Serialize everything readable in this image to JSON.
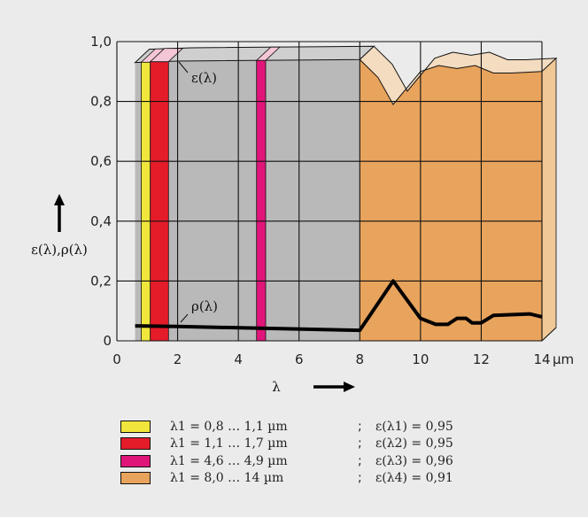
{
  "chart_data": {
    "type": "area",
    "xlabel": "λ",
    "x_unit": "µm",
    "ylabel": "ε(λ),ρ(λ)",
    "xlim": [
      0,
      14
    ],
    "ylim": [
      0,
      1.0
    ],
    "grid": true,
    "x_ticks": [
      "0",
      "2",
      "4",
      "6",
      "8",
      "10",
      "12",
      "14"
    ],
    "y_ticks": [
      "0",
      "0,2",
      "0,4",
      "0,6",
      "0,8",
      "1,0"
    ],
    "series": [
      {
        "name": "ε(λ)",
        "x": [
          0.6,
          2.0,
          8.0,
          8.6,
          9.1,
          10.0,
          10.6,
          11.2,
          11.8,
          12.4,
          13.0,
          14.0
        ],
        "y": [
          0.93,
          0.935,
          0.94,
          0.88,
          0.79,
          0.9,
          0.92,
          0.91,
          0.92,
          0.895,
          0.895,
          0.9
        ]
      },
      {
        "name": "ρ(λ)",
        "x": [
          0.6,
          2.0,
          8.0,
          9.1,
          10.0,
          10.5,
          10.9,
          11.2,
          11.5,
          11.7,
          12.0,
          12.4,
          13.6,
          14.0
        ],
        "y": [
          0.05,
          0.048,
          0.035,
          0.2,
          0.075,
          0.055,
          0.055,
          0.075,
          0.075,
          0.06,
          0.06,
          0.085,
          0.09,
          0.08
        ]
      }
    ],
    "bands": [
      {
        "range": "λ1 = 0,8 … 1,1 µm",
        "emissivity": "ε(λ1) = 0,95",
        "color": "#f0e63c",
        "x_from": 0.8,
        "x_to": 1.1,
        "height": 0.95
      },
      {
        "range": "λ1 = 1,1 … 1,7 µm",
        "emissivity": "ε(λ2) = 0,95",
        "color": "#e41c2a",
        "x_from": 1.1,
        "x_to": 1.7,
        "height": 0.95
      },
      {
        "range": "λ1 = 4,6 … 4,9 µm",
        "emissivity": "ε(λ3) = 0,96",
        "color": "#e0157a",
        "x_from": 4.6,
        "x_to": 4.9,
        "height": 0.96
      },
      {
        "range": "λ1 = 8,0 … 14 µm",
        "emissivity": "ε(λ4) = 0,91",
        "color": "#e8a35c",
        "x_from": 8.0,
        "x_to": 14.0,
        "height": 0.91
      }
    ],
    "colors": {
      "gray_region": "#b9b9b9",
      "grid": "#111111",
      "rho_line": "#000000"
    }
  },
  "legend_separator": ";"
}
